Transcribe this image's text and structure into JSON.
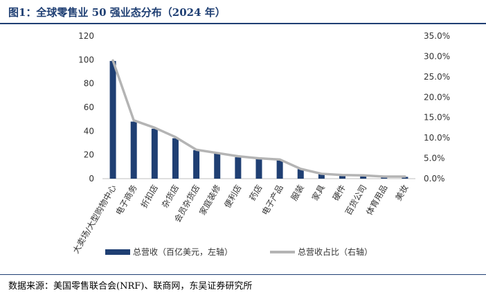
{
  "title": "图1：全球零售业 50 强业态分布（2024 年）",
  "source": "数据来源：美国零售联合会(NRF)、联商网，东吴证券研究所",
  "chart_data": {
    "type": "bar",
    "categories": [
      "大卖场/大型购物中心",
      "电子商务",
      "折扣店",
      "杂货店",
      "会员杂货店",
      "家庭装修",
      "便利店",
      "药店",
      "电子产品",
      "服装",
      "家具",
      "硬件",
      "百货公司",
      "体育用品",
      "美妆"
    ],
    "series": [
      {
        "name": "总营收（百亿美元，左轴）",
        "kind": "bar",
        "axis": "left",
        "color": "#1f3f73",
        "values": [
          99,
          48,
          42,
          34,
          24,
          21,
          18,
          17,
          16,
          8,
          4,
          3,
          2.5,
          1.5,
          1.5
        ]
      },
      {
        "name": "总营收占比（右轴）",
        "kind": "line",
        "axis": "right",
        "color": "#b4b4b4",
        "values": [
          29.0,
          14.3,
          12.5,
          10.2,
          7.1,
          6.3,
          5.5,
          5.0,
          4.7,
          2.4,
          1.2,
          0.9,
          0.8,
          0.5,
          0.5
        ]
      }
    ],
    "y_left": {
      "ylim": [
        0,
        120
      ],
      "ticks": [
        "0",
        "20",
        "40",
        "60",
        "80",
        "100",
        "120"
      ]
    },
    "y_right": {
      "ylim": [
        0,
        35
      ],
      "ticks": [
        "0.0%",
        "5.0%",
        "10.0%",
        "15.0%",
        "20.0%",
        "25.0%",
        "30.0%",
        "35.0%"
      ]
    },
    "grid": false,
    "legend_position": "bottom"
  }
}
